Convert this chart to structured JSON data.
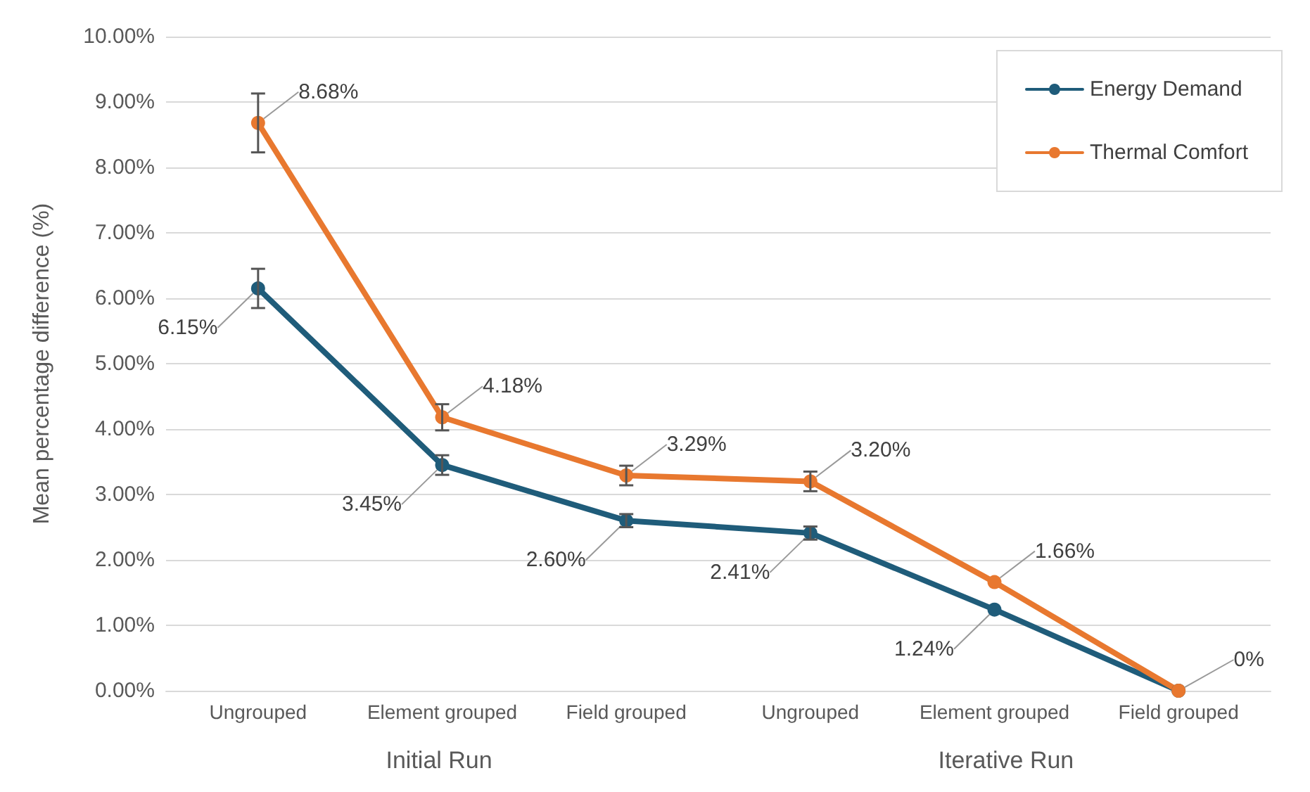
{
  "chart_data": {
    "type": "line",
    "ylabel": "Mean percentage difference (%)",
    "categories": [
      "Ungrouped",
      "Element grouped",
      "Field grouped",
      "Ungrouped",
      "Element grouped",
      "Field grouped"
    ],
    "series": [
      {
        "name": "Energy Demand",
        "color": "#1f5c7a",
        "values": [
          6.15,
          3.45,
          2.6,
          2.41,
          1.24,
          0
        ],
        "errors": [
          0.3,
          0.15,
          0.1,
          0.1,
          null,
          null
        ],
        "value_labels": [
          "6.15%",
          "3.45%",
          "2.60%",
          "2.41%",
          "1.24%",
          null
        ]
      },
      {
        "name": "Thermal Comfort",
        "color": "#e8782f",
        "values": [
          8.68,
          4.18,
          3.29,
          3.2,
          1.66,
          0
        ],
        "errors": [
          0.45,
          0.2,
          0.15,
          0.15,
          null,
          null
        ],
        "value_labels": [
          "8.68%",
          "4.18%",
          "3.29%",
          "3.20%",
          "1.66%",
          "0%"
        ]
      }
    ],
    "ylim": [
      0,
      10
    ],
    "yticks": [
      {
        "value": 0,
        "label": "0.00%"
      },
      {
        "value": 1,
        "label": "1.00%"
      },
      {
        "value": 2,
        "label": "2.00%"
      },
      {
        "value": 3,
        "label": "3.00%"
      },
      {
        "value": 4,
        "label": "4.00%"
      },
      {
        "value": 5,
        "label": "5.00%"
      },
      {
        "value": 6,
        "label": "6.00%"
      },
      {
        "value": 7,
        "label": "7.00%"
      },
      {
        "value": 8,
        "label": "8.00%"
      },
      {
        "value": 9,
        "label": "9.00%"
      },
      {
        "value": 10,
        "label": "10.00%"
      }
    ],
    "annotations": [
      "Initial Run",
      "Iterative Run"
    ],
    "grid": "y",
    "legend": "top right",
    "marker": "circle",
    "line_style": "solid"
  }
}
